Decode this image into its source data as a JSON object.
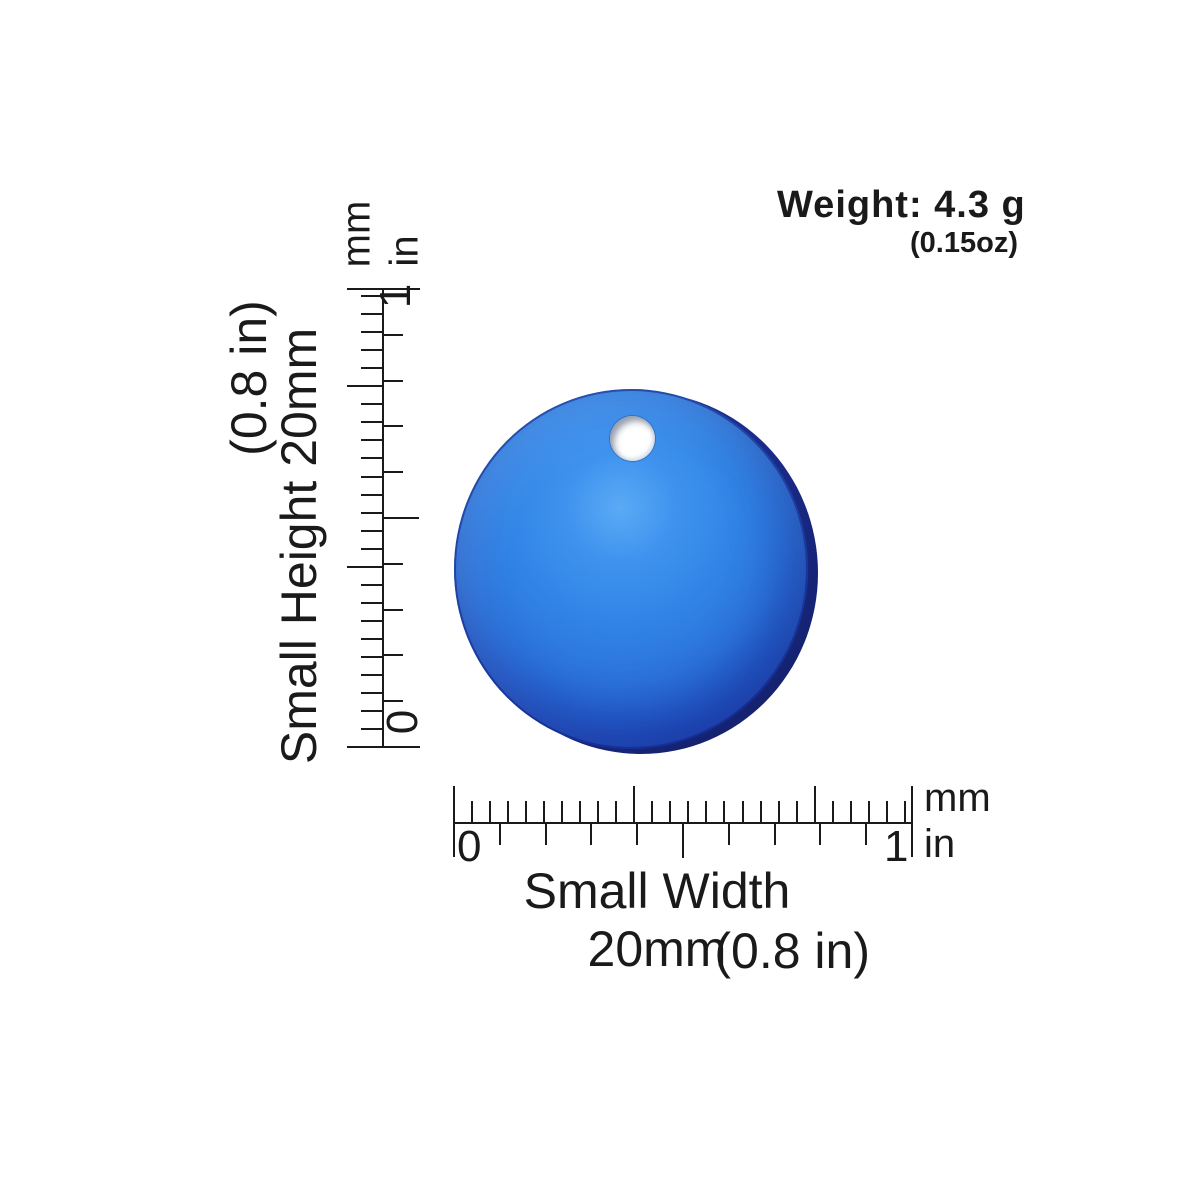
{
  "weight": {
    "value": "Weight: 4.3 g",
    "alt": "(0.15oz)"
  },
  "height_dimension": {
    "label": "Small Height 20mm",
    "imperial": "(0.8 in)"
  },
  "width_dimension": {
    "label": "Small Width 20mm",
    "imperial": "(0.8 in)"
  },
  "vertical_ruler": {
    "unit_metric": "mm",
    "unit_imperial": "in",
    "max_label": "1",
    "min_label": "0",
    "mm_ticks": 25,
    "inch_divisions": 10,
    "long_mm_ticks": [
      10,
      20
    ],
    "long_inch_ticks": [
      5
    ]
  },
  "horizontal_ruler": {
    "unit_metric": "mm",
    "unit_imperial": "in",
    "min_label": "0",
    "max_label": "1",
    "mm_ticks": 25,
    "inch_divisions": 10,
    "long_mm_ticks": [
      10,
      20
    ],
    "long_inch_ticks": [
      5
    ]
  },
  "disc": {
    "description": "blue round metal tag with hanging hole",
    "color_highlight": "#5aaaf5",
    "color_main": "#2e82e4",
    "color_deep": "#1e3cb2",
    "color_rim": "#1b2c8e",
    "hole_color": "#ffffff"
  }
}
